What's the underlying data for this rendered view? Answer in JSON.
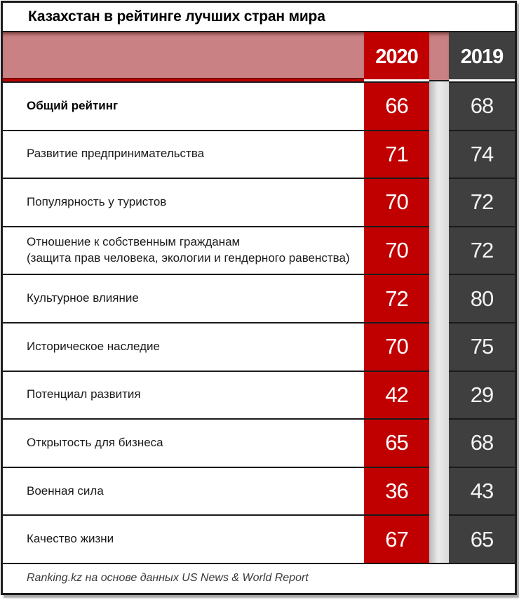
{
  "title": "Казахстан в рейтинге лучших стран мира",
  "colors": {
    "accent_red": "#C00000",
    "dark_gray": "#3F3F3F",
    "header_pink": "#C98183",
    "gap_gray": "#D9D9D9"
  },
  "chart_data": {
    "type": "table",
    "title": "Казахстан в рейтинге лучших стран мира",
    "series_names": [
      "2020",
      "2019"
    ],
    "categories": [
      "Общий рейтинг",
      "Развитие предпринимательства",
      "Популярность у туристов",
      "Отношение к собственным гражданам",
      "Культурное влияние",
      "Историческое наследие",
      "Потенциал развития",
      "Открытость для бизнеса",
      "Военная сила",
      "Качество жизни"
    ],
    "category_notes": [
      "",
      "",
      "",
      "(защита прав человека, экологии и гендерного равенства)",
      "",
      "",
      "",
      "",
      "",
      ""
    ],
    "series": [
      {
        "name": "2020",
        "values": [
          66,
          71,
          70,
          70,
          72,
          70,
          42,
          65,
          36,
          67
        ]
      },
      {
        "name": "2019",
        "values": [
          68,
          74,
          72,
          72,
          80,
          75,
          29,
          68,
          43,
          65
        ]
      }
    ],
    "source": "Ranking.kz на основе данных US News & World Report"
  }
}
